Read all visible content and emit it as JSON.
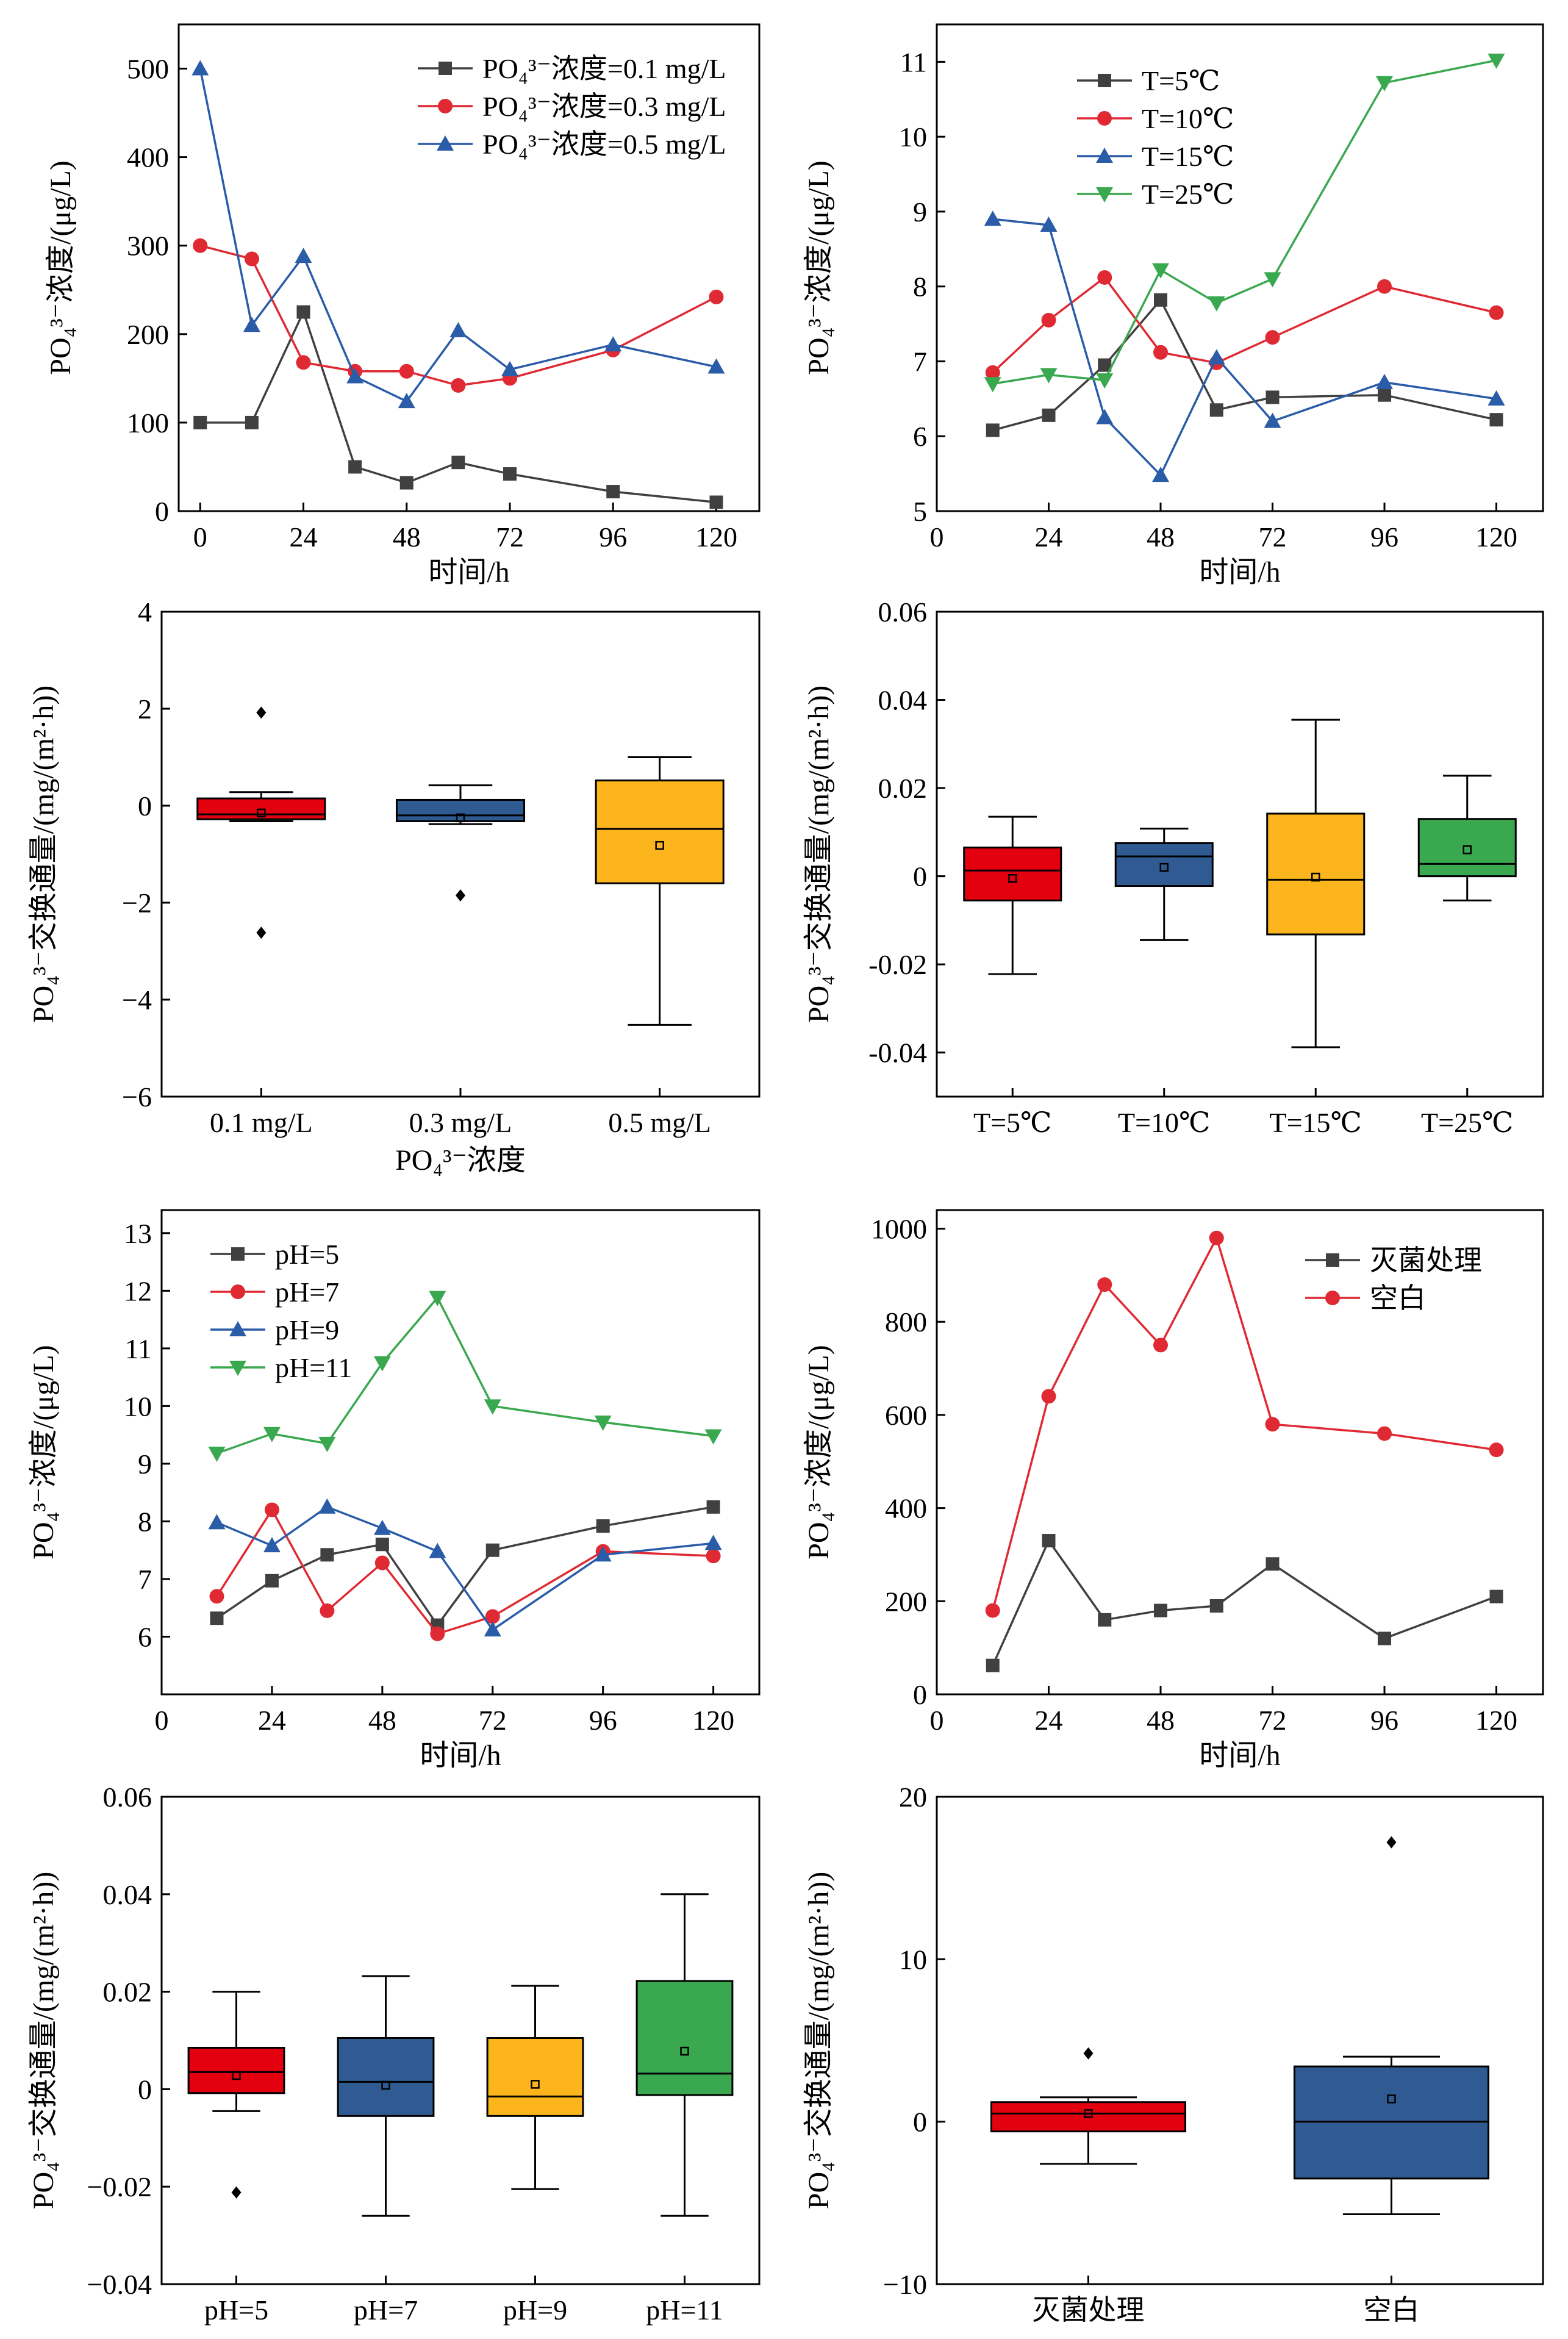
{
  "chart_data": [
    {
      "type": "line",
      "xlabel": "时间/h",
      "ylabel": "PO₄³⁻浓度/(μg/L)",
      "xlim": [
        -5,
        130
      ],
      "ylim": [
        0,
        550
      ],
      "xticks": [
        0,
        24,
        48,
        72,
        96,
        120
      ],
      "yticks": [
        0,
        100,
        200,
        300,
        400,
        500
      ],
      "legend_position": "top-right",
      "series": [
        {
          "name": "PO₄³⁻浓度=0.1 mg/L",
          "color": "#404040",
          "marker": "square",
          "x": [
            0,
            12,
            24,
            36,
            48,
            60,
            72,
            96,
            120
          ],
          "y": [
            100,
            100,
            225,
            50,
            32,
            55,
            42,
            22,
            10
          ]
        },
        {
          "name": "PO₄³⁻浓度=0.3 mg/L",
          "color": "#e02a33",
          "marker": "circle",
          "x": [
            0,
            12,
            24,
            36,
            48,
            60,
            72,
            96,
            120
          ],
          "y": [
            300,
            285,
            168,
            158,
            158,
            142,
            150,
            182,
            242
          ]
        },
        {
          "name": "PO₄³⁻浓度=0.5 mg/L",
          "color": "#2a5ca8",
          "marker": "triangle-up",
          "x": [
            0,
            12,
            24,
            36,
            48,
            60,
            72,
            96,
            120
          ],
          "y": [
            500,
            210,
            288,
            152,
            124,
            204,
            160,
            188,
            163
          ]
        }
      ]
    },
    {
      "type": "line",
      "xlabel": "时间/h",
      "ylabel": "PO₄³⁻浓度/(μg/L)",
      "xlim": [
        0,
        130
      ],
      "ylim": [
        5,
        11.5
      ],
      "xticks": [
        0,
        24,
        48,
        72,
        96,
        120
      ],
      "yticks": [
        5,
        6,
        7,
        8,
        9,
        10,
        11
      ],
      "legend_position": "top-left",
      "series": [
        {
          "name": "T=5℃",
          "color": "#404040",
          "marker": "square",
          "x": [
            12,
            24,
            36,
            48,
            60,
            72,
            96,
            120
          ],
          "y": [
            6.08,
            6.28,
            6.95,
            7.82,
            6.35,
            6.52,
            6.55,
            6.22
          ]
        },
        {
          "name": "T=10℃",
          "color": "#e02a33",
          "marker": "circle",
          "x": [
            12,
            24,
            36,
            48,
            60,
            72,
            96,
            120
          ],
          "y": [
            6.85,
            7.55,
            8.12,
            7.12,
            6.98,
            7.32,
            8.0,
            7.65
          ]
        },
        {
          "name": "T=15℃",
          "color": "#2a5ca8",
          "marker": "triangle-up",
          "x": [
            12,
            24,
            36,
            48,
            60,
            72,
            96,
            120
          ],
          "y": [
            8.9,
            8.82,
            6.25,
            5.48,
            7.05,
            6.2,
            6.72,
            6.5
          ]
        },
        {
          "name": "T=25℃",
          "color": "#3aa84f",
          "marker": "triangle-down",
          "x": [
            12,
            24,
            36,
            48,
            60,
            72,
            96,
            120
          ],
          "y": [
            6.7,
            6.82,
            6.75,
            8.22,
            7.78,
            8.1,
            10.72,
            11.02
          ]
        }
      ]
    },
    {
      "type": "box",
      "xlabel": "PO₄³⁻浓度",
      "ylabel": "PO₄³⁻交换通量/(mg/(m²·h))",
      "ylim": [
        -6,
        4
      ],
      "yticks": [
        -6,
        -4,
        -2,
        0,
        2,
        4
      ],
      "ytick_labels": [
        "−6",
        "−4",
        "−2",
        "0",
        "2",
        "4"
      ],
      "categories": [
        "0.1 mg/L",
        "0.3 mg/L",
        "0.5 mg/L"
      ],
      "boxes": [
        {
          "color": "#e3000f",
          "whisker_low": -0.32,
          "q1": -0.28,
          "median": -0.18,
          "q3": 0.15,
          "whisker_high": 0.28,
          "mean": -0.15,
          "outliers": [
            1.92,
            -2.62
          ]
        },
        {
          "color": "#2f5b92",
          "whisker_low": -0.38,
          "q1": -0.32,
          "median": -0.2,
          "q3": 0.12,
          "whisker_high": 0.42,
          "mean": -0.25,
          "outliers": [
            -1.85
          ]
        },
        {
          "color": "#fcb51c",
          "whisker_low": -4.52,
          "q1": -1.6,
          "median": -0.48,
          "q3": 0.52,
          "whisker_high": 1.0,
          "mean": -0.82,
          "outliers": []
        }
      ]
    },
    {
      "type": "box",
      "xlabel": "",
      "ylabel": "PO₄³⁻交换通量/(mg/(m²·h))",
      "ylim": [
        -0.05,
        0.06
      ],
      "yticks": [
        -0.04,
        -0.02,
        0,
        0.02,
        0.04,
        0.06
      ],
      "ytick_labels": [
        "-0.04",
        "-0.02",
        "0",
        "0.02",
        "0.04",
        "0.06"
      ],
      "categories": [
        "T=5℃",
        "T=10℃",
        "T=15℃",
        "T=25℃"
      ],
      "boxes": [
        {
          "color": "#e3000f",
          "whisker_low": -0.0222,
          "q1": -0.0055,
          "median": 0.0013,
          "q3": 0.0065,
          "whisker_high": 0.0135,
          "mean": -0.0005,
          "outliers": []
        },
        {
          "color": "#2f5b92",
          "whisker_low": -0.0145,
          "q1": -0.0022,
          "median": 0.0045,
          "q3": 0.0075,
          "whisker_high": 0.0108,
          "mean": 0.002,
          "outliers": []
        },
        {
          "color": "#fcb51c",
          "whisker_low": -0.0388,
          "q1": -0.0132,
          "median": -0.0008,
          "q3": 0.0142,
          "whisker_high": 0.0355,
          "mean": -0.0002,
          "outliers": []
        },
        {
          "color": "#3aa84f",
          "whisker_low": -0.0055,
          "q1": 0.0,
          "median": 0.0028,
          "q3": 0.013,
          "whisker_high": 0.0228,
          "mean": 0.006,
          "outliers": []
        }
      ]
    },
    {
      "type": "line",
      "xlabel": "时间/h",
      "ylabel": "PO₄³⁻浓度/(μg/L)",
      "xlim": [
        0,
        130
      ],
      "ylim": [
        5,
        13.4
      ],
      "xticks": [
        0,
        24,
        48,
        72,
        96,
        120
      ],
      "yticks": [
        6,
        7,
        8,
        9,
        10,
        11,
        12,
        13
      ],
      "legend_position": "top-left",
      "series": [
        {
          "name": "pH=5",
          "color": "#404040",
          "marker": "square",
          "x": [
            12,
            24,
            36,
            48,
            60,
            72,
            96,
            120
          ],
          "y": [
            6.32,
            6.97,
            7.42,
            7.6,
            6.2,
            7.5,
            7.92,
            8.25
          ]
        },
        {
          "name": "pH=7",
          "color": "#e02a33",
          "marker": "circle",
          "x": [
            12,
            24,
            36,
            48,
            60,
            72,
            96,
            120
          ],
          "y": [
            6.7,
            8.2,
            6.45,
            7.28,
            6.05,
            6.35,
            7.48,
            7.4
          ]
        },
        {
          "name": "pH=9",
          "color": "#2a5ca8",
          "marker": "triangle-up",
          "x": [
            12,
            24,
            36,
            48,
            60,
            72,
            96,
            120
          ],
          "y": [
            7.98,
            7.58,
            8.25,
            7.88,
            7.48,
            6.12,
            7.42,
            7.62
          ]
        },
        {
          "name": "pH=11",
          "color": "#3aa84f",
          "marker": "triangle-down",
          "x": [
            12,
            24,
            36,
            48,
            60,
            72,
            96,
            120
          ],
          "y": [
            9.18,
            9.52,
            9.35,
            10.75,
            11.88,
            10.0,
            9.72,
            9.48
          ]
        }
      ]
    },
    {
      "type": "line",
      "xlabel": "时间/h",
      "ylabel": "PO₄³⁻浓度/(μg/L)",
      "xlim": [
        0,
        130
      ],
      "ylim": [
        0,
        1040
      ],
      "xticks": [
        0,
        24,
        48,
        72,
        96,
        120
      ],
      "yticks": [
        0,
        200,
        400,
        600,
        800,
        1000
      ],
      "legend_position": "top-right",
      "series": [
        {
          "name": "灭菌处理",
          "color": "#404040",
          "marker": "square",
          "x": [
            12,
            24,
            36,
            48,
            60,
            72,
            96,
            120
          ],
          "y": [
            62,
            330,
            160,
            180,
            190,
            280,
            120,
            210
          ]
        },
        {
          "name": "空白",
          "color": "#e02a33",
          "marker": "circle",
          "x": [
            12,
            24,
            36,
            48,
            60,
            72,
            96,
            120
          ],
          "y": [
            180,
            640,
            880,
            750,
            980,
            580,
            560,
            525
          ]
        }
      ]
    },
    {
      "type": "box",
      "xlabel": "",
      "ylabel": "PO₄³⁻交换通量/(mg/(m²·h))",
      "ylim": [
        -0.04,
        0.06
      ],
      "yticks": [
        -0.04,
        -0.02,
        0,
        0.02,
        0.04,
        0.06
      ],
      "ytick_labels": [
        "−0.04",
        "−0.02",
        "0",
        "0.02",
        "0.04",
        "0.06"
      ],
      "categories": [
        "pH=5",
        "pH=7",
        "pH=9",
        "pH=11"
      ],
      "boxes": [
        {
          "color": "#e3000f",
          "whisker_low": -0.0045,
          "q1": -0.0008,
          "median": 0.0035,
          "q3": 0.0085,
          "whisker_high": 0.02,
          "mean": 0.0028,
          "outliers": [
            -0.0212
          ]
        },
        {
          "color": "#2f5b92",
          "whisker_low": -0.026,
          "q1": -0.0055,
          "median": 0.0015,
          "q3": 0.0105,
          "whisker_high": 0.0232,
          "mean": 0.0008,
          "outliers": []
        },
        {
          "color": "#fcb51c",
          "whisker_low": -0.0205,
          "q1": -0.0055,
          "median": -0.0015,
          "q3": 0.0105,
          "whisker_high": 0.0212,
          "mean": 0.001,
          "outliers": []
        },
        {
          "color": "#3aa84f",
          "whisker_low": -0.026,
          "q1": -0.0012,
          "median": 0.0032,
          "q3": 0.0222,
          "whisker_high": 0.04,
          "mean": 0.0078,
          "outliers": []
        }
      ]
    },
    {
      "type": "box",
      "xlabel": "",
      "ylabel": "PO₄³⁻交换通量/(mg/(m²·h))",
      "ylim": [
        -10,
        20
      ],
      "yticks": [
        -10,
        0,
        10,
        20
      ],
      "ytick_labels": [
        "−10",
        "0",
        "10",
        "20"
      ],
      "categories": [
        "灭菌处理",
        "空白"
      ],
      "boxes": [
        {
          "color": "#e3000f",
          "whisker_low": -2.6,
          "q1": -0.6,
          "median": 0.5,
          "q3": 1.2,
          "whisker_high": 1.5,
          "mean": 0.5,
          "outliers": [
            4.2
          ]
        },
        {
          "color": "#2f5b92",
          "whisker_low": -5.7,
          "q1": -3.5,
          "median": 0.0,
          "q3": 3.4,
          "whisker_high": 4.0,
          "mean": 1.4,
          "outliers": [
            17.2
          ]
        }
      ]
    }
  ]
}
